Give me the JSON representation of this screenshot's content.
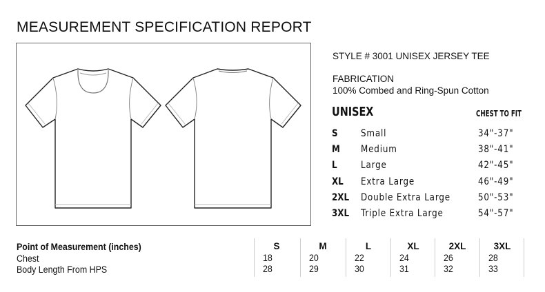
{
  "title": "MEASUREMENT SPECIFICATION REPORT",
  "style_line": "STYLE # 3001  UNISEX JERSEY TEE",
  "fabrication": {
    "label": "FABRICATION",
    "value": "100% Combed and Ring-Spun Cotton"
  },
  "size_chart": {
    "heading": "UNISEX",
    "column_heading": "CHEST TO FIT",
    "rows": [
      {
        "code": "S",
        "name": "Small",
        "chest": "34\"-37\""
      },
      {
        "code": "M",
        "name": "Medium",
        "chest": "38\"-41\""
      },
      {
        "code": "L",
        "name": "Large",
        "chest": "42\"-45\""
      },
      {
        "code": "XL",
        "name": "Extra Large",
        "chest": "46\"-49\""
      },
      {
        "code": "2XL",
        "name": "Double Extra Large",
        "chest": "50\"-53\""
      },
      {
        "code": "3XL",
        "name": "Triple Extra Large",
        "chest": "54\"-57\""
      }
    ]
  },
  "measurements": {
    "header": "Point of Measurement (inches)",
    "row_labels": [
      "Chest",
      "Body Length From HPS"
    ],
    "columns": [
      {
        "size": "S",
        "chest": "18",
        "length": "28"
      },
      {
        "size": "M",
        "chest": "20",
        "length": "29"
      },
      {
        "size": "L",
        "chest": "22",
        "length": "30"
      },
      {
        "size": "XL",
        "chest": "24",
        "length": "31"
      },
      {
        "size": "2XL",
        "chest": "26",
        "length": "32"
      },
      {
        "size": "3XL",
        "chest": "28",
        "length": "33"
      }
    ]
  }
}
